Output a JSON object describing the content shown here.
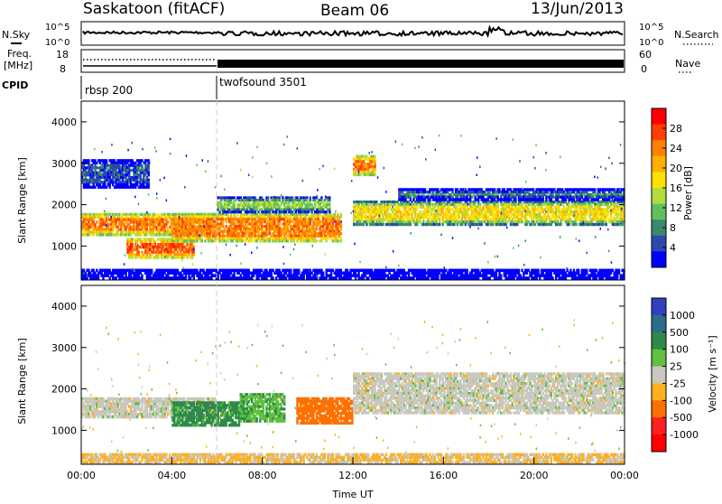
{
  "header": {
    "station": "Saskatoon (fitACF)",
    "beam": "Beam 06",
    "date": "13/Jun/2013"
  },
  "panels": {
    "nsky_label": "N.Sky",
    "nsky_ticks": [
      "10^5",
      "10^0"
    ],
    "nsearch_label": "N.Search",
    "nsearch_ticks": [
      "10^5",
      "10^0"
    ],
    "freq_label_line1": "Freq.",
    "freq_label_line2": "[MHz]",
    "freq_ticks": [
      "18",
      "8"
    ],
    "nave_label": "Nave",
    "nave_ticks": [
      "60",
      "0"
    ],
    "cpid_label": "CPID",
    "cpid_modes": [
      {
        "name": "rbsp 200",
        "start_hour": 0
      },
      {
        "name": "twofsound 3501",
        "start_hour": 6
      }
    ]
  },
  "power_colorbar": {
    "label": "Power [dB]",
    "ticks": [
      "28",
      "24",
      "20",
      "16",
      "12",
      "8",
      "4"
    ],
    "colors": [
      "#ff0000",
      "#ff4000",
      "#ff8000",
      "#ffb000",
      "#ffe000",
      "#b0dc40",
      "#60c060",
      "#3a8a6a",
      "#2a4ab0",
      "#0000ff"
    ]
  },
  "velocity_colorbar": {
    "label": "Velocity [m s⁻¹]",
    "ticks": [
      "1000",
      "500",
      "100",
      "25",
      "-25",
      "-100",
      "-500",
      "-1000"
    ],
    "colors": [
      "#3040c0",
      "#2e6a8a",
      "#2e8a4a",
      "#60c040",
      "#c8c8c0",
      "#ffb020",
      "#ff7000",
      "#ff2020",
      "#ff0000"
    ]
  },
  "chart_data": [
    {
      "type": "heatmap",
      "quantity": "Power",
      "ylabel": "Slant Range [km]",
      "xlim": [
        "00:00",
        "24:00"
      ],
      "ylim": [
        180,
        4500
      ],
      "yticks": [
        "4000",
        "3000",
        "2000",
        "1000"
      ],
      "ytick_values": [
        4000,
        3000,
        2000,
        1000
      ],
      "bands": [
        {
          "t0": 0.0,
          "t1": 6.0,
          "r0": 1250,
          "r1": 1800,
          "level": 24
        },
        {
          "t0": 2.0,
          "t1": 5.0,
          "r0": 700,
          "r1": 1200,
          "level": 26
        },
        {
          "t0": 4.0,
          "t1": 11.5,
          "r0": 1100,
          "r1": 1800,
          "level": 24
        },
        {
          "t0": 6.0,
          "t1": 11.0,
          "r0": 1800,
          "r1": 2200,
          "level": 14
        },
        {
          "t0": 12.0,
          "t1": 13.0,
          "r0": 2700,
          "r1": 3200,
          "level": 24
        },
        {
          "t0": 12.0,
          "t1": 24.0,
          "r0": 1500,
          "r1": 2100,
          "level": 18
        },
        {
          "t0": 14.0,
          "t1": 24.0,
          "r0": 2100,
          "r1": 2400,
          "level": 10
        },
        {
          "t0": 0.0,
          "t1": 24.0,
          "r0": 200,
          "r1": 450,
          "level": 6
        },
        {
          "t0": 0.0,
          "t1": 3.0,
          "r0": 2400,
          "r1": 3100,
          "level": 6
        }
      ]
    },
    {
      "type": "heatmap",
      "quantity": "Velocity",
      "ylabel": "Slant Range [km]",
      "xlabel": "Time UT",
      "xlim": [
        "00:00",
        "24:00"
      ],
      "ylim": [
        180,
        4500
      ],
      "xticks": [
        "00:00",
        "04:00",
        "08:00",
        "12:00",
        "16:00",
        "20:00",
        "00:00"
      ],
      "yticks": [
        "4000",
        "3000",
        "2000",
        "1000"
      ],
      "ytick_values": [
        4000,
        3000,
        2000,
        1000
      ],
      "bands": [
        {
          "t0": 0.0,
          "t1": 6.0,
          "r0": 1300,
          "r1": 1800,
          "velocity": 0
        },
        {
          "t0": 4.0,
          "t1": 7.0,
          "r0": 1100,
          "r1": 1700,
          "velocity": 120
        },
        {
          "t0": 7.0,
          "t1": 9.0,
          "r0": 1200,
          "r1": 1900,
          "velocity": 90
        },
        {
          "t0": 9.5,
          "t1": 12.0,
          "r0": 1150,
          "r1": 1800,
          "velocity": -200
        },
        {
          "t0": 12.0,
          "t1": 24.0,
          "r0": 1400,
          "r1": 2400,
          "velocity": 0
        },
        {
          "t0": 0.0,
          "t1": 24.0,
          "r0": 200,
          "r1": 450,
          "velocity": -30
        }
      ]
    }
  ]
}
